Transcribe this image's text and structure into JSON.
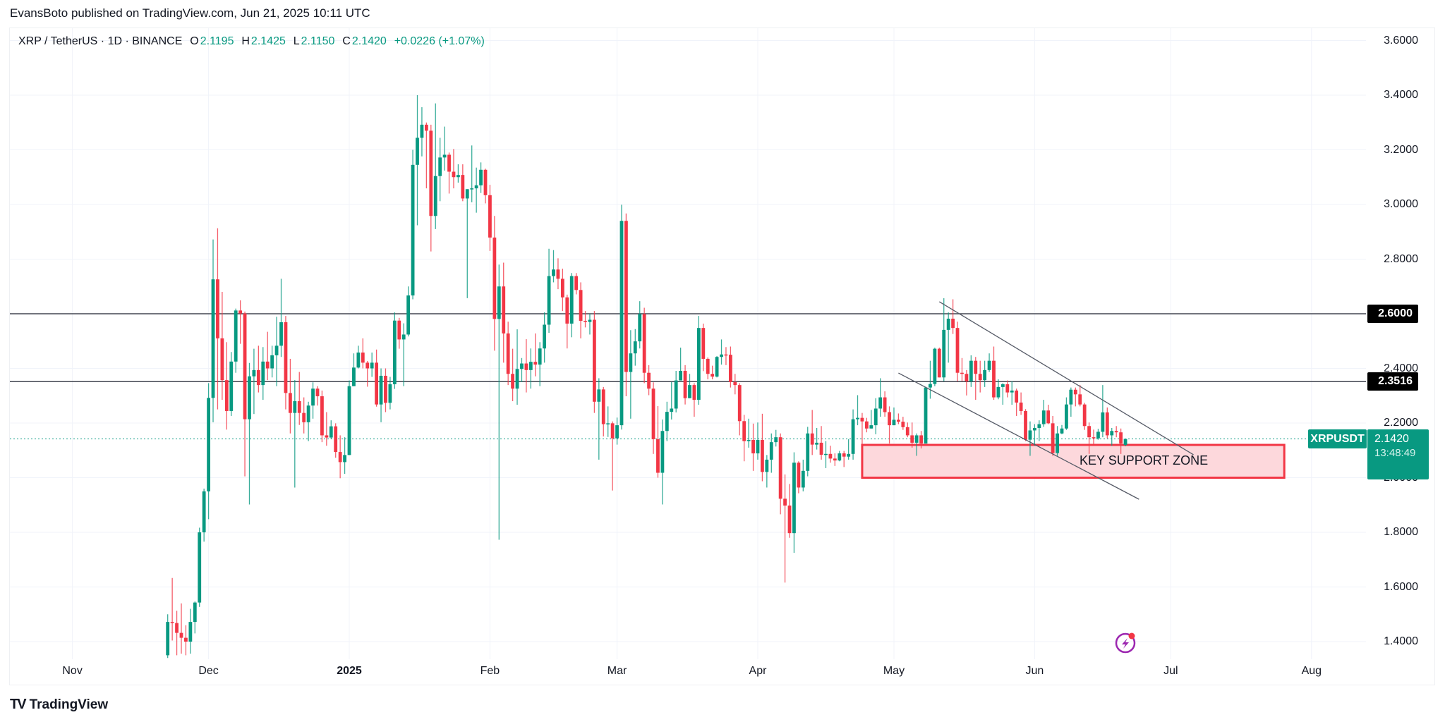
{
  "publisher_line": "EvansBoto published on TradingView.com, Jun 21, 2025 10:11 UTC",
  "legend": {
    "symbol": "XRP / TetherUS · 1D · BINANCE",
    "o_label": "O",
    "o": "2.1195",
    "h_label": "H",
    "h": "2.1425",
    "l_label": "L",
    "l": "2.1150",
    "c_label": "C",
    "c": "2.1420",
    "change": "+0.0226 (+1.07%)"
  },
  "current_price": {
    "symbol": "XRPUSDT",
    "price": "2.1420",
    "countdown": "13:48:49",
    "value": 2.142
  },
  "level_tags": [
    {
      "label": "2.6000",
      "value": 2.6
    },
    {
      "label": "2.3516",
      "value": 2.3516
    }
  ],
  "zone": {
    "label": "KEY SUPPORT ZONE",
    "top": 2.12,
    "bottom": 2.0,
    "start": "2025-04-24",
    "end": "2025-07-26"
  },
  "trendlines": [
    {
      "name": "channel-upper",
      "start": [
        "2025-05-11",
        2.644
      ],
      "end": [
        "2025-07-06",
        2.084
      ]
    },
    {
      "name": "channel-lower",
      "start": [
        "2025-05-02",
        2.383
      ],
      "end": [
        "2025-06-24",
        1.921
      ]
    }
  ],
  "brand": "TradingView",
  "brand_mark": "TV",
  "colors": {
    "up": "#089981",
    "down": "#F23645",
    "zone_fill": "#FDD8DC",
    "zone_border": "#F23645",
    "level": "#434651",
    "grid": "#F0F3FA",
    "icon": "#9C27B0"
  },
  "icon": "lightning-icon",
  "chart_data": {
    "type": "candlestick",
    "title": "XRP / TetherUS · 1D · BINANCE",
    "first_date": "2024-11-22",
    "x_origin": "2024-11-01",
    "ylim": [
      1.35,
      3.6
    ],
    "yticks": [
      {
        "label": "3.6000",
        "value": 3.6
      },
      {
        "label": "3.4000",
        "value": 3.4
      },
      {
        "label": "3.2000",
        "value": 3.2
      },
      {
        "label": "3.0000",
        "value": 3.0
      },
      {
        "label": "2.8000",
        "value": 2.8
      },
      {
        "label": "2.4000",
        "value": 2.4
      },
      {
        "label": "2.2000",
        "value": 2.2
      },
      {
        "label": "2.0000",
        "value": 2.0
      },
      {
        "label": "1.8000",
        "value": 1.8
      },
      {
        "label": "1.6000",
        "value": 1.6
      },
      {
        "label": "1.4000",
        "value": 1.4
      }
    ],
    "grid_values": [
      3.6,
      3.4,
      3.2,
      3.0,
      2.8,
      2.6,
      2.4,
      2.2,
      2.0,
      1.8,
      1.6,
      1.4
    ],
    "xticks": [
      {
        "label": "Nov",
        "date": "2024-11-01"
      },
      {
        "label": "Dec",
        "date": "2024-12-01"
      },
      {
        "label": "2025",
        "date": "2025-01-01",
        "bold": true
      },
      {
        "label": "Feb",
        "date": "2025-02-01"
      },
      {
        "label": "Mar",
        "date": "2025-03-01"
      },
      {
        "label": "Apr",
        "date": "2025-04-01"
      },
      {
        "label": "May",
        "date": "2025-05-01"
      },
      {
        "label": "Jun",
        "date": "2025-06-01"
      },
      {
        "label": "Jul",
        "date": "2025-07-01"
      },
      {
        "label": "Aug",
        "date": "2025-08-01"
      }
    ],
    "horizontal_levels": [
      2.6,
      2.3516
    ],
    "first_open": 1.35,
    "last_open": 2.1195,
    "hlc": [
      [
        1.5,
        1.34,
        1.472
      ],
      [
        1.633,
        1.404,
        1.468
      ],
      [
        1.513,
        1.35,
        1.432
      ],
      [
        1.54,
        1.356,
        1.414
      ],
      [
        1.46,
        1.35,
        1.4
      ],
      [
        1.52,
        1.356,
        1.472
      ],
      [
        1.547,
        1.43,
        1.543
      ],
      [
        1.817,
        1.527,
        1.8
      ],
      [
        1.96,
        1.766,
        1.95
      ],
      [
        2.346,
        1.848,
        2.292
      ],
      [
        2.872,
        2.203,
        2.726
      ],
      [
        2.913,
        2.25,
        2.51
      ],
      [
        2.68,
        2.285,
        2.357
      ],
      [
        2.496,
        2.176,
        2.244
      ],
      [
        2.46,
        2.226,
        2.425
      ],
      [
        2.619,
        2.384,
        2.612
      ],
      [
        2.649,
        2.49,
        2.601
      ],
      [
        2.608,
        2.005,
        2.214
      ],
      [
        2.42,
        1.902,
        2.371
      ],
      [
        2.472,
        2.233,
        2.394
      ],
      [
        2.483,
        2.312,
        2.339
      ],
      [
        2.478,
        2.285,
        2.425
      ],
      [
        2.534,
        2.357,
        2.4
      ],
      [
        2.483,
        2.367,
        2.448
      ],
      [
        2.589,
        2.335,
        2.483
      ],
      [
        2.728,
        2.442,
        2.569
      ],
      [
        2.592,
        2.25,
        2.31
      ],
      [
        2.435,
        2.162,
        2.237
      ],
      [
        2.357,
        1.964,
        2.28
      ],
      [
        2.387,
        2.193,
        2.237
      ],
      [
        2.294,
        2.162,
        2.203
      ],
      [
        2.278,
        2.134,
        2.264
      ],
      [
        2.349,
        2.216,
        2.326
      ],
      [
        2.335,
        2.264,
        2.298
      ],
      [
        2.319,
        2.13,
        2.155
      ],
      [
        2.24,
        2.117,
        2.147
      ],
      [
        2.21,
        2.141,
        2.188
      ],
      [
        2.199,
        2.073,
        2.094
      ],
      [
        2.155,
        1.998,
        2.057
      ],
      [
        2.148,
        2.014,
        2.083
      ],
      [
        2.356,
        2.083,
        2.335
      ],
      [
        2.455,
        2.335,
        2.403
      ],
      [
        2.483,
        2.4,
        2.458
      ],
      [
        2.51,
        2.4,
        2.421
      ],
      [
        2.427,
        2.333,
        2.4
      ],
      [
        2.458,
        2.369,
        2.421
      ],
      [
        2.469,
        2.26,
        2.268
      ],
      [
        2.4,
        2.203,
        2.373
      ],
      [
        2.4,
        2.24,
        2.274
      ],
      [
        2.369,
        2.25,
        2.342
      ],
      [
        2.605,
        2.325,
        2.575
      ],
      [
        2.585,
        2.472,
        2.506
      ],
      [
        2.565,
        2.335,
        2.524
      ],
      [
        2.7,
        2.517,
        2.667
      ],
      [
        3.2,
        2.653,
        3.145
      ],
      [
        3.4,
        2.924,
        3.244
      ],
      [
        3.356,
        3.176,
        3.292
      ],
      [
        3.3,
        3.059,
        3.27
      ],
      [
        3.292,
        2.828,
        2.958
      ],
      [
        3.37,
        2.91,
        3.104
      ],
      [
        3.244,
        3.012,
        3.172
      ],
      [
        3.285,
        3.124,
        3.182
      ],
      [
        3.19,
        3.04,
        3.12
      ],
      [
        3.203,
        3.059,
        3.1
      ],
      [
        3.147,
        3.08,
        3.108
      ],
      [
        3.147,
        3.012,
        3.022
      ],
      [
        3.056,
        2.657,
        3.056
      ],
      [
        3.216,
        3.008,
        3.059
      ],
      [
        3.135,
        2.97,
        3.07
      ],
      [
        3.154,
        3.042,
        3.127
      ],
      [
        3.131,
        3.004,
        3.034
      ],
      [
        3.072,
        2.83,
        2.879
      ],
      [
        2.958,
        2.465,
        2.581
      ],
      [
        2.78,
        1.773,
        2.7
      ],
      [
        2.787,
        2.421,
        2.528
      ],
      [
        2.571,
        2.339,
        2.38
      ],
      [
        2.472,
        2.28,
        2.326
      ],
      [
        2.543,
        2.267,
        2.398
      ],
      [
        2.438,
        2.35,
        2.418
      ],
      [
        2.507,
        2.312,
        2.394
      ],
      [
        2.473,
        2.326,
        2.424
      ],
      [
        2.528,
        2.371,
        2.414
      ],
      [
        2.496,
        2.335,
        2.473
      ],
      [
        2.605,
        2.421,
        2.56
      ],
      [
        2.838,
        2.53,
        2.738
      ],
      [
        2.833,
        2.715,
        2.762
      ],
      [
        2.803,
        2.69,
        2.728
      ],
      [
        2.765,
        2.61,
        2.66
      ],
      [
        2.67,
        2.473,
        2.564
      ],
      [
        2.749,
        2.514,
        2.738
      ],
      [
        2.749,
        2.671,
        2.687
      ],
      [
        2.715,
        2.51,
        2.574
      ],
      [
        2.61,
        2.55,
        2.57
      ],
      [
        2.6,
        2.524,
        2.578
      ],
      [
        2.61,
        2.237,
        2.278
      ],
      [
        2.364,
        2.066,
        2.323
      ],
      [
        2.332,
        2.151,
        2.196
      ],
      [
        2.261,
        2.149,
        2.199
      ],
      [
        2.206,
        1.953,
        2.144
      ],
      [
        2.22,
        2.121,
        2.192
      ],
      [
        2.999,
        2.176,
        2.94
      ],
      [
        2.967,
        2.298,
        2.387
      ],
      [
        2.54,
        2.216,
        2.455
      ],
      [
        2.544,
        2.41,
        2.499
      ],
      [
        2.646,
        2.473,
        2.599
      ],
      [
        2.622,
        2.346,
        2.384
      ],
      [
        2.412,
        2.302,
        2.326
      ],
      [
        2.349,
        2.087,
        2.141
      ],
      [
        2.262,
        2.0,
        2.018
      ],
      [
        2.213,
        1.902,
        2.171
      ],
      [
        2.278,
        2.134,
        2.241
      ],
      [
        2.35,
        2.213,
        2.253
      ],
      [
        2.391,
        2.239,
        2.356
      ],
      [
        2.476,
        2.356,
        2.391
      ],
      [
        2.412,
        2.268,
        2.291
      ],
      [
        2.38,
        2.291,
        2.339
      ],
      [
        2.346,
        2.223,
        2.285
      ],
      [
        2.592,
        2.267,
        2.548
      ],
      [
        2.564,
        2.39,
        2.435
      ],
      [
        2.44,
        2.36,
        2.38
      ],
      [
        2.41,
        2.36,
        2.37
      ],
      [
        2.445,
        2.367,
        2.442
      ],
      [
        2.506,
        2.414,
        2.451
      ],
      [
        2.478,
        2.412,
        2.45
      ],
      [
        2.48,
        2.33,
        2.35
      ],
      [
        2.38,
        2.305,
        2.339
      ],
      [
        2.346,
        2.155,
        2.207
      ],
      [
        2.23,
        2.06,
        2.134
      ],
      [
        2.216,
        2.11,
        2.138
      ],
      [
        2.198,
        2.025,
        2.089
      ],
      [
        2.202,
        2.066,
        2.138
      ],
      [
        2.234,
        1.987,
        2.021
      ],
      [
        2.083,
        1.964,
        2.066
      ],
      [
        2.162,
        2.018,
        2.13
      ],
      [
        2.175,
        2.114,
        2.148
      ],
      [
        2.162,
        1.866,
        1.923
      ],
      [
        2.012,
        1.616,
        1.898
      ],
      [
        1.977,
        1.78,
        1.797
      ],
      [
        2.093,
        1.725,
        2.055
      ],
      [
        2.06,
        1.943,
        1.964
      ],
      [
        2.066,
        1.95,
        2.025
      ],
      [
        2.186,
        2.005,
        2.162
      ],
      [
        2.248,
        2.083,
        2.121
      ],
      [
        2.182,
        2.103,
        2.128
      ],
      [
        2.189,
        2.066,
        2.084
      ],
      [
        2.134,
        2.035,
        2.087
      ],
      [
        2.117,
        2.055,
        2.07
      ],
      [
        2.089,
        2.043,
        2.063
      ],
      [
        2.098,
        2.06,
        2.089
      ],
      [
        2.098,
        2.039,
        2.077
      ],
      [
        2.141,
        2.066,
        2.087
      ],
      [
        2.25,
        2.066,
        2.214
      ],
      [
        2.302,
        2.192,
        2.219
      ],
      [
        2.237,
        2.12,
        2.206
      ],
      [
        2.219,
        2.166,
        2.18
      ],
      [
        2.248,
        2.18,
        2.192
      ],
      [
        2.291,
        2.159,
        2.253
      ],
      [
        2.364,
        2.223,
        2.294
      ],
      [
        2.316,
        2.223,
        2.24
      ],
      [
        2.261,
        2.125,
        2.192
      ],
      [
        2.257,
        2.192,
        2.212
      ],
      [
        2.235,
        2.196,
        2.205
      ],
      [
        2.223,
        2.175,
        2.185
      ],
      [
        2.202,
        2.148,
        2.155
      ],
      [
        2.202,
        2.11,
        2.128
      ],
      [
        2.162,
        2.08,
        2.155
      ],
      [
        2.171,
        2.107,
        2.125
      ],
      [
        2.333,
        2.125,
        2.33
      ],
      [
        2.428,
        2.289,
        2.343
      ],
      [
        2.476,
        2.335,
        2.472
      ],
      [
        2.476,
        2.367,
        2.367
      ],
      [
        2.657,
        2.353,
        2.541
      ],
      [
        2.605,
        2.421,
        2.582
      ],
      [
        2.653,
        2.526,
        2.548
      ],
      [
        2.571,
        2.353,
        2.384
      ],
      [
        2.438,
        2.353,
        2.38
      ],
      [
        2.394,
        2.301,
        2.353
      ],
      [
        2.448,
        2.332,
        2.428
      ],
      [
        2.442,
        2.285,
        2.38
      ],
      [
        2.428,
        2.312,
        2.357
      ],
      [
        2.428,
        2.332,
        2.394
      ],
      [
        2.455,
        2.387,
        2.428
      ],
      [
        2.48,
        2.285,
        2.294
      ],
      [
        2.36,
        2.287,
        2.332
      ],
      [
        2.346,
        2.267,
        2.342
      ],
      [
        2.356,
        2.294,
        2.312
      ],
      [
        2.353,
        2.267,
        2.319
      ],
      [
        2.326,
        2.226,
        2.275
      ],
      [
        2.312,
        2.23,
        2.244
      ],
      [
        2.251,
        2.134,
        2.139
      ],
      [
        2.206,
        2.08,
        2.173
      ],
      [
        2.196,
        2.117,
        2.182
      ],
      [
        2.21,
        2.134,
        2.196
      ],
      [
        2.285,
        2.186,
        2.246
      ],
      [
        2.267,
        2.196,
        2.199
      ],
      [
        2.226,
        2.08,
        2.09
      ],
      [
        2.189,
        2.08,
        2.162
      ],
      [
        2.193,
        2.159,
        2.18
      ],
      [
        2.294,
        2.175,
        2.268
      ],
      [
        2.33,
        2.223,
        2.322
      ],
      [
        2.33,
        2.261,
        2.305
      ],
      [
        2.339,
        2.261,
        2.268
      ],
      [
        2.274,
        2.175,
        2.189
      ],
      [
        2.202,
        2.087,
        2.148
      ],
      [
        2.176,
        2.117,
        2.144
      ],
      [
        2.179,
        2.139,
        2.168
      ],
      [
        2.339,
        2.148,
        2.239
      ],
      [
        2.257,
        2.144,
        2.155
      ],
      [
        2.182,
        2.117,
        2.171
      ],
      [
        2.189,
        2.148,
        2.166
      ],
      [
        2.18,
        2.087,
        2.125
      ],
      [
        2.1425,
        2.115,
        2.142
      ]
    ]
  }
}
